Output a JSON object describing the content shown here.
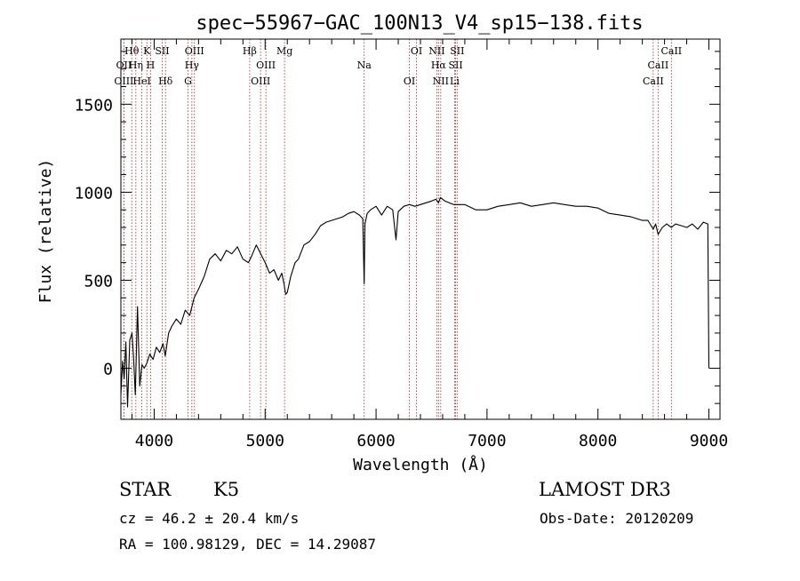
{
  "chart_data": {
    "type": "line",
    "title": "spec−55967−GAC_100N13_V4_sp15−138.fits",
    "xlabel": "Wavelength (Å)",
    "ylabel": "Flux (relative)",
    "xlim": [
      3700,
      9100
    ],
    "ylim": [
      -290,
      1870
    ],
    "x_ticks": [
      4000,
      5000,
      6000,
      7000,
      8000,
      9000
    ],
    "x_tick_labels": [
      "4000",
      "5000",
      "6000",
      "7000",
      "8000",
      "9000"
    ],
    "y_ticks": [
      0,
      500,
      1000,
      1500
    ],
    "y_tick_labels": [
      "0",
      "500",
      "1000",
      "1500"
    ],
    "grid": false,
    "line_color": "#000000",
    "marker_color": "#b22222",
    "series": [
      {
        "name": "flux",
        "x": [
          3700,
          3715,
          3730,
          3745,
          3760,
          3780,
          3800,
          3815,
          3830,
          3850,
          3870,
          3890,
          3910,
          3935,
          3960,
          3990,
          4020,
          4050,
          4080,
          4100,
          4130,
          4160,
          4200,
          4240,
          4280,
          4320,
          4360,
          4400,
          4450,
          4500,
          4550,
          4600,
          4650,
          4700,
          4750,
          4800,
          4850,
          4880,
          4920,
          4960,
          5000,
          5040,
          5080,
          5120,
          5150,
          5170,
          5185,
          5200,
          5230,
          5270,
          5300,
          5350,
          5400,
          5450,
          5500,
          5550,
          5600,
          5650,
          5700,
          5750,
          5800,
          5850,
          5880,
          5893,
          5900,
          5920,
          5950,
          6000,
          6050,
          6100,
          6150,
          6180,
          6200,
          6250,
          6300,
          6350,
          6400,
          6450,
          6500,
          6540,
          6563,
          6580,
          6620,
          6700,
          6800,
          6900,
          7000,
          7100,
          7200,
          7300,
          7400,
          7500,
          7600,
          7700,
          7800,
          7900,
          8000,
          8100,
          8200,
          8300,
          8400,
          8450,
          8498,
          8520,
          8542,
          8580,
          8620,
          8662,
          8700,
          8750,
          8800,
          8850,
          8900,
          8950,
          8990,
          9000
        ],
        "y": [
          -150,
          40,
          -60,
          150,
          -220,
          160,
          200,
          50,
          -150,
          350,
          -100,
          20,
          0,
          30,
          80,
          50,
          120,
          90,
          140,
          70,
          200,
          240,
          280,
          250,
          330,
          300,
          400,
          450,
          520,
          620,
          650,
          610,
          670,
          650,
          690,
          620,
          600,
          640,
          700,
          650,
          600,
          540,
          560,
          500,
          540,
          480,
          420,
          430,
          520,
          600,
          620,
          700,
          720,
          760,
          810,
          830,
          840,
          850,
          860,
          880,
          890,
          870,
          850,
          480,
          820,
          880,
          900,
          920,
          870,
          920,
          900,
          730,
          890,
          920,
          930,
          920,
          930,
          940,
          950,
          960,
          940,
          970,
          950,
          930,
          930,
          900,
          900,
          920,
          930,
          940,
          920,
          930,
          940,
          930,
          920,
          920,
          910,
          880,
          870,
          860,
          840,
          840,
          790,
          820,
          760,
          800,
          820,
          800,
          820,
          810,
          800,
          820,
          790,
          830,
          820,
          0
        ]
      }
    ],
    "lines": [
      {
        "label": "Hθ",
        "x": 3798
      },
      {
        "label": "OII",
        "x": 3727
      },
      {
        "label": "OIII",
        "x": 3727
      },
      {
        "label": "K",
        "x": 3934
      },
      {
        "label": "Hη",
        "x": 3835
      },
      {
        "label": "HeI",
        "x": 3889
      },
      {
        "label": "SII",
        "x": 4072
      },
      {
        "label": "H",
        "x": 3968
      },
      {
        "label": "Hδ",
        "x": 4102
      },
      {
        "label": "OIII",
        "x": 4363
      },
      {
        "label": "Hγ",
        "x": 4340
      },
      {
        "label": "G",
        "x": 4305
      },
      {
        "label": "Hβ",
        "x": 4861
      },
      {
        "label": "OIII",
        "x": 5007
      },
      {
        "label": "OIII",
        "x": 4959
      },
      {
        "label": "Mg",
        "x": 5175
      },
      {
        "label": "Na",
        "x": 5893
      },
      {
        "label": "OI",
        "x": 6300
      },
      {
        "label": "OI",
        "x": 6364
      },
      {
        "label": "Hα",
        "x": 6563
      },
      {
        "label": "NII",
        "x": 6583
      },
      {
        "label": "NII",
        "x": 6548
      },
      {
        "label": "SII",
        "x": 6717
      },
      {
        "label": "Li",
        "x": 6708
      },
      {
        "label": "SII",
        "x": 6731
      },
      {
        "label": "CaII",
        "x": 8542
      },
      {
        "label": "CaII",
        "x": 8498
      },
      {
        "label": "CaII",
        "x": 8662
      }
    ]
  },
  "info": {
    "object_class": "STAR",
    "subclass": "K5",
    "survey": "LAMOST DR3",
    "cz": "cz = 46.2 ± 20.4 km/s",
    "obs_date": "Obs-Date: 20120209",
    "coords": "RA = 100.98129, DEC =  14.29087"
  }
}
